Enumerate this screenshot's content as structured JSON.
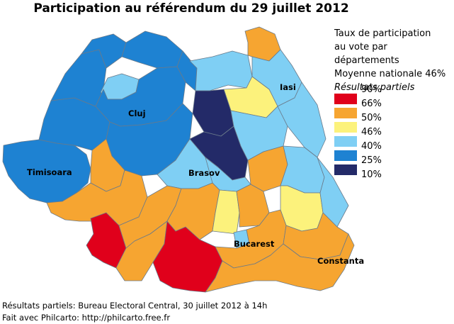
{
  "title": "Participation au référendum du 29 juillet 2012",
  "legend": {
    "lines": [
      "Taux de participation",
      "au vote par départements",
      "Moyenne nationale 46%"
    ],
    "note": "Résultats partiels",
    "classes": [
      {
        "label": "90%",
        "color": "#e0001b"
      },
      {
        "label": "66%",
        "color": "#f6a531"
      },
      {
        "label": "50%",
        "color": "#fcf27c"
      },
      {
        "label": "46%",
        "color": "#7fcff4"
      },
      {
        "label": "40%",
        "color": "#1e82d2"
      },
      {
        "label": "25%",
        "color": "#232a68"
      },
      {
        "label": "10%",
        "color": null
      }
    ]
  },
  "cities": [
    "Cluj",
    "Iasi",
    "Timisoara",
    "Brasov",
    "Bucarest",
    "Constanta"
  ],
  "footer": [
    "Résultats partiels: Bureau Electoral Central, 30 juillet 2012 à 14h",
    "Fait avec Philcarto: http://philcarto.free.fr"
  ]
}
